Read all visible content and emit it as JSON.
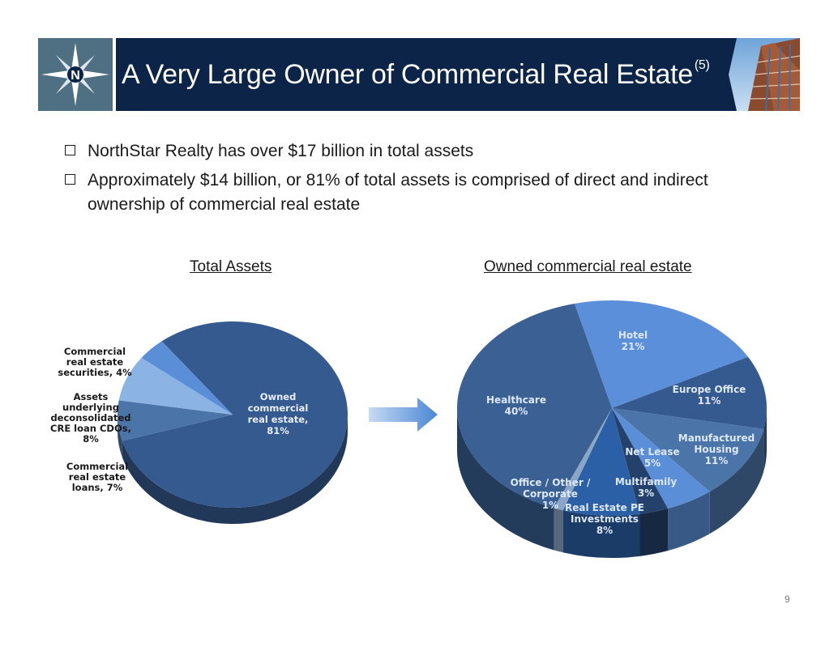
{
  "header": {
    "title": "A Very Large Owner of Commercial Real Estate",
    "title_sup": "(5)",
    "logo_letter": "N"
  },
  "bullets": [
    "NorthStar Realty has over $17 billion in total assets",
    "Approximately $14 billion, or 81% of total assets is comprised of direct and indirect ownership of commercial real estate"
  ],
  "page_number": "9",
  "colors": {
    "header_bg": "#0b2447",
    "logo_bg": "#4f6f82",
    "arrow": "#4a86d4"
  },
  "chart_data": [
    {
      "type": "pie",
      "title": "Total Assets",
      "slices": [
        {
          "label": [
            "Owned",
            "commercial",
            "real estate,",
            "81%"
          ],
          "value": 81,
          "color": "#355a8f"
        },
        {
          "label": [
            "Commercial",
            "real estate",
            "loans, 7%"
          ],
          "value": 7,
          "color": "#4b74a8"
        },
        {
          "label": [
            "Assets",
            "underlying",
            "deconsolidated",
            "CRE loan CDOs,",
            "8%"
          ],
          "value": 8,
          "color": "#8bb4e4"
        },
        {
          "label": [
            "Commercial",
            "real estate",
            "securities, 4%"
          ],
          "value": 4,
          "color": "#5a8ed6"
        }
      ]
    },
    {
      "type": "pie",
      "title": "Owned commercial real estate",
      "slices": [
        {
          "label": [
            "Hotel",
            "21%"
          ],
          "value": 21,
          "color": "#5b8fd9"
        },
        {
          "label": [
            "Europe Office",
            "11%"
          ],
          "value": 11,
          "color": "#355a8f"
        },
        {
          "label": [
            "Manufactured",
            "Housing",
            "11%"
          ],
          "value": 11,
          "color": "#4b74a8"
        },
        {
          "label": [
            "Net Lease",
            "5%"
          ],
          "value": 5,
          "color": "#5a8ed6"
        },
        {
          "label": [
            "Multifamily",
            "3%"
          ],
          "value": 3,
          "color": "#24416b"
        },
        {
          "label": [
            "Real Estate PE",
            "Investments",
            "8%"
          ],
          "value": 8,
          "color": "#2c60a6"
        },
        {
          "label": [
            "Office / Other /",
            "Corporate",
            "1%"
          ],
          "value": 1,
          "color": "#8aa6c6"
        },
        {
          "label": [
            "Healthcare",
            "40%"
          ],
          "value": 40,
          "color": "#3a6094"
        }
      ]
    }
  ]
}
